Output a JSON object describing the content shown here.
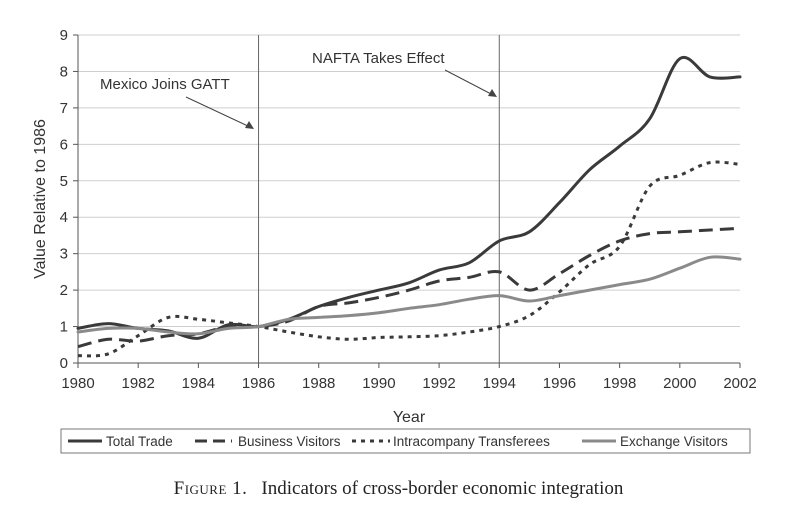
{
  "chart_data": {
    "type": "line",
    "title": "",
    "xlabel": "Year",
    "ylabel": "Value Relative to 1986",
    "xlim": [
      1980,
      2002
    ],
    "ylim": [
      0,
      9
    ],
    "xticks": [
      "1980",
      "1982",
      "1984",
      "1986",
      "1988",
      "1990",
      "1992",
      "1994",
      "1996",
      "1998",
      "2000",
      "2002"
    ],
    "yticks": [
      "0",
      "1",
      "2",
      "3",
      "4",
      "5",
      "6",
      "7",
      "8",
      "9"
    ],
    "grid": "horizontal",
    "legend_position": "bottom",
    "annotations": [
      {
        "text": "Mexico Joins GATT",
        "year": 1986
      },
      {
        "text": "NAFTA Takes Effect",
        "year": 1994
      }
    ],
    "series": [
      {
        "name": "Total Trade",
        "style": "solid",
        "color": "#3a3a3a",
        "x": [
          1980,
          1981,
          1982,
          1983,
          1984,
          1985,
          1986,
          1987,
          1988,
          1989,
          1990,
          1991,
          1992,
          1993,
          1994,
          1995,
          1996,
          1997,
          1998,
          1999,
          2000,
          2001,
          2002
        ],
        "y": [
          0.95,
          1.08,
          0.95,
          0.88,
          0.68,
          1.05,
          1.0,
          1.2,
          1.55,
          1.8,
          2.0,
          2.2,
          2.55,
          2.75,
          3.35,
          3.6,
          4.4,
          5.3,
          5.95,
          6.7,
          8.35,
          7.85,
          7.85
        ]
      },
      {
        "name": "Business Visitors",
        "style": "dashed",
        "color": "#3a3a3a",
        "x": [
          1980,
          1981,
          1982,
          1983,
          1984,
          1985,
          1986,
          1987,
          1988,
          1989,
          1990,
          1991,
          1992,
          1993,
          1994,
          1995,
          1996,
          1997,
          1998,
          1999,
          2000,
          2001,
          2002
        ],
        "y": [
          0.45,
          0.65,
          0.6,
          0.75,
          0.8,
          1.0,
          1.0,
          1.15,
          1.55,
          1.65,
          1.8,
          2.0,
          2.25,
          2.35,
          2.5,
          2.0,
          2.45,
          2.95,
          3.35,
          3.55,
          3.6,
          3.65,
          3.7
        ]
      },
      {
        "name": "Intracompany Transferees",
        "style": "dotted",
        "color": "#3a3a3a",
        "x": [
          1980,
          1981,
          1982,
          1983,
          1984,
          1985,
          1986,
          1987,
          1988,
          1989,
          1990,
          1991,
          1992,
          1993,
          1994,
          1995,
          1996,
          1997,
          1998,
          1999,
          2000,
          2001,
          2002
        ],
        "y": [
          0.2,
          0.25,
          0.75,
          1.25,
          1.2,
          1.1,
          1.0,
          0.85,
          0.72,
          0.65,
          0.7,
          0.72,
          0.75,
          0.85,
          1.0,
          1.3,
          1.95,
          2.7,
          3.2,
          4.85,
          5.15,
          5.5,
          5.45
        ]
      },
      {
        "name": "Exchange Visitors",
        "style": "solid",
        "color": "#8a8a8a",
        "x": [
          1980,
          1981,
          1982,
          1983,
          1984,
          1985,
          1986,
          1987,
          1988,
          1989,
          1990,
          1991,
          1992,
          1993,
          1994,
          1995,
          1996,
          1997,
          1998,
          1999,
          2000,
          2001,
          2002
        ],
        "y": [
          0.85,
          0.95,
          0.95,
          0.85,
          0.8,
          0.95,
          1.0,
          1.2,
          1.25,
          1.3,
          1.38,
          1.5,
          1.6,
          1.75,
          1.85,
          1.7,
          1.85,
          2.0,
          2.15,
          2.3,
          2.6,
          2.9,
          2.85
        ]
      }
    ]
  },
  "caption": {
    "figure_label": "Figure 1.",
    "text": "Indicators of cross-border economic integration"
  }
}
